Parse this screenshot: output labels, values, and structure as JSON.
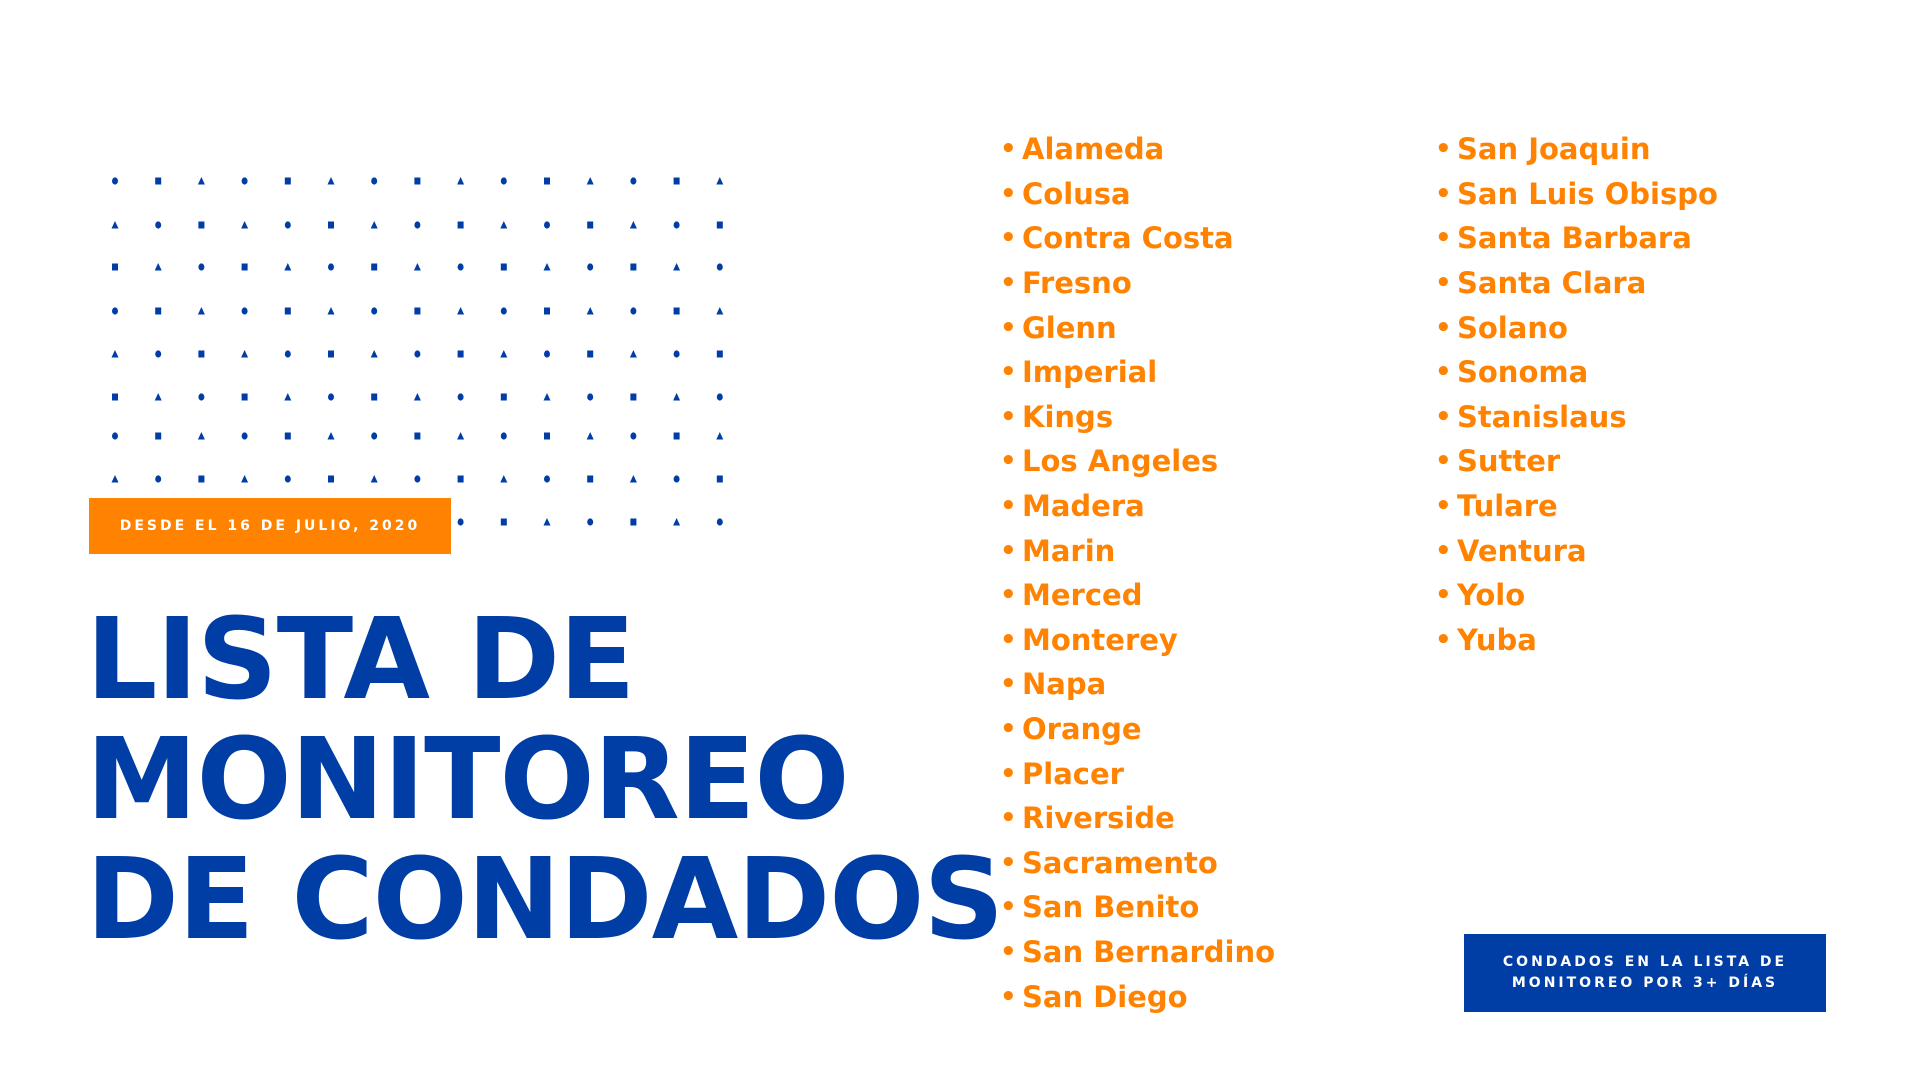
{
  "colors": {
    "blue": "#003da5",
    "orange": "#ff8200"
  },
  "badge": {
    "date": "DESDE EL 16 DE JULIO, 2020"
  },
  "title": {
    "lines": [
      "LISTA DE",
      "MONITOREO",
      "DE CONDADOS"
    ]
  },
  "counties": {
    "column1": [
      "Alameda",
      "Colusa",
      "Contra Costa",
      "Fresno",
      "Glenn",
      "Imperial",
      "Kings",
      "Los Angeles",
      "Madera",
      "Marin",
      "Merced",
      "Monterey",
      "Napa",
      "Orange",
      "Placer",
      "Riverside",
      "Sacramento",
      "San Benito",
      "San Bernardino",
      "San Diego"
    ],
    "column2": [
      "San Joaquin",
      "San Luis Obispo",
      "Santa Barbara",
      "Santa Clara",
      "Solano",
      "Sonoma",
      "Stanislaus",
      "Sutter",
      "Tulare",
      "Ventura",
      "Yolo",
      "Yuba"
    ]
  },
  "legend": {
    "lines": [
      "CONDADOS EN LA LISTA DE",
      "MONITOREO POR 3+ DÍAS"
    ]
  },
  "decoration": {
    "pattern_icons": [
      "circle-icon",
      "square-icon",
      "triangle-icon"
    ]
  }
}
